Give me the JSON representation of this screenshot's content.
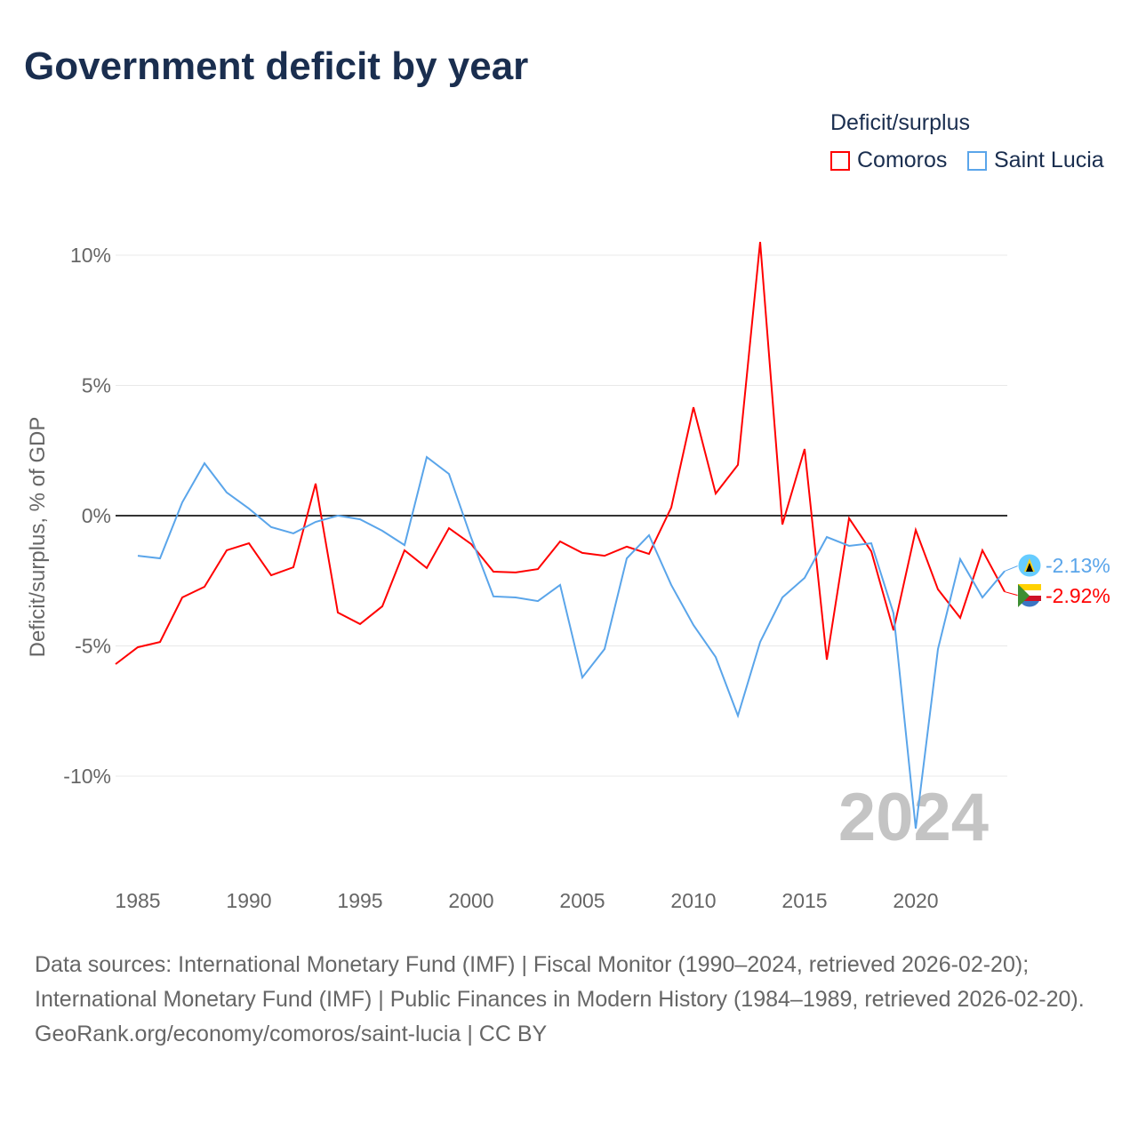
{
  "chart_data": {
    "type": "line",
    "title": "Government deficit by year",
    "ylabel": "Deficit/surplus, % of GDP",
    "xlabel": "",
    "legend_title": "Deficit/surplus",
    "legend_position": "top-right",
    "ylim": [
      -13.5,
      11.5
    ],
    "xlim": [
      1984,
      2024
    ],
    "yticks": [
      10,
      5,
      0,
      -5,
      -10
    ],
    "ytick_labels": [
      "10%",
      "5%",
      "0%",
      "-5%",
      "-10%"
    ],
    "xticks": [
      1985,
      1990,
      1995,
      2000,
      2005,
      2010,
      2015,
      2020
    ],
    "xtick_labels": [
      "1985",
      "1990",
      "1995",
      "2000",
      "2005",
      "2010",
      "2015",
      "2020"
    ],
    "year_watermark": "2024",
    "series": [
      {
        "name": "Comoros",
        "color": "#ff0000",
        "end_label": "-2.92%",
        "x": [
          1984,
          1985,
          1986,
          1987,
          1988,
          1989,
          1990,
          1991,
          1992,
          1993,
          1994,
          1995,
          1996,
          1997,
          1998,
          1999,
          2000,
          2001,
          2002,
          2003,
          2004,
          2005,
          2006,
          2007,
          2008,
          2009,
          2010,
          2011,
          2012,
          2013,
          2014,
          2015,
          2016,
          2017,
          2018,
          2019,
          2020,
          2021,
          2022,
          2023,
          2024
        ],
        "values": [
          -5.7,
          -5.05,
          -4.85,
          -3.14,
          -2.73,
          -1.33,
          -1.06,
          -2.29,
          -1.98,
          1.23,
          -3.72,
          -4.16,
          -3.48,
          -1.33,
          -2.01,
          -0.48,
          -1.09,
          -2.15,
          -2.18,
          -2.05,
          -0.99,
          -1.43,
          -1.54,
          -1.19,
          -1.47,
          0.31,
          4.16,
          0.85,
          1.95,
          10.51,
          -0.34,
          2.56,
          -5.53,
          -0.1,
          -1.37,
          -4.4,
          -0.55,
          -2.83,
          -3.92,
          -1.33,
          -2.92
        ]
      },
      {
        "name": "Saint Lucia",
        "color": "#5aa5ea",
        "end_label": "-2.13%",
        "x": [
          1985,
          1986,
          1987,
          1988,
          1989,
          1990,
          1991,
          1992,
          1993,
          1994,
          1995,
          1996,
          1997,
          1998,
          1999,
          2000,
          2001,
          2002,
          2003,
          2004,
          2005,
          2006,
          2007,
          2008,
          2009,
          2010,
          2011,
          2012,
          2013,
          2014,
          2015,
          2016,
          2017,
          2018,
          2019,
          2020,
          2021,
          2022,
          2023,
          2024
        ],
        "values": [
          -1.54,
          -1.64,
          0.51,
          2.01,
          0.89,
          0.27,
          -0.44,
          -0.68,
          -0.24,
          0,
          -0.14,
          -0.58,
          -1.13,
          2.25,
          1.6,
          -0.85,
          -3.1,
          -3.14,
          -3.28,
          -2.66,
          -6.21,
          -5.12,
          -1.64,
          -0.75,
          -2.66,
          -4.2,
          -5.43,
          -7.68,
          -4.85,
          -3.14,
          -2.39,
          -0.82,
          -1.16,
          -1.06,
          -3.75,
          -12.01,
          -5.12,
          -1.67,
          -3.14,
          -2.13
        ]
      }
    ]
  },
  "footer": {
    "sources": "Data sources: International Monetary Fund (IMF) | Fiscal Monitor (1990–2024, retrieved 2026-02-20); International Monetary Fund (IMF) | Public Finances in Modern History (1984–1989, retrieved 2026-02-20).",
    "credit": "GeoRank.org/economy/comoros/saint-lucia | CC BY"
  }
}
